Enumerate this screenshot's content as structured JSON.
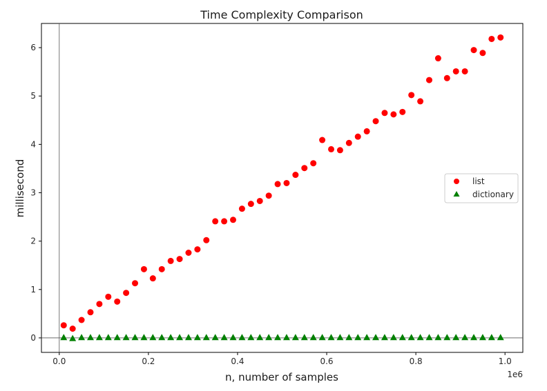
{
  "chart_data": {
    "type": "scatter",
    "title": "Time Complexity Comparison",
    "xlabel": "n, number of samples",
    "ylabel": "millisecond",
    "x_offset_label": "1e6",
    "xlim": [
      -0.04,
      1.04
    ],
    "ylim": [
      -0.3,
      6.5
    ],
    "x_ticks": [
      0.0,
      0.2,
      0.4,
      0.6,
      0.8,
      1.0
    ],
    "x_tick_labels": [
      "0.0",
      "0.2",
      "0.4",
      "0.6",
      "0.8",
      "1.0"
    ],
    "y_ticks": [
      0,
      1,
      2,
      3,
      4,
      5,
      6
    ],
    "y_tick_labels": [
      "0",
      "1",
      "2",
      "3",
      "4",
      "5",
      "6"
    ],
    "reference_lines": {
      "x": 0,
      "y": 0
    },
    "grid": false,
    "legend_position": "right",
    "x": [
      0.01,
      0.03,
      0.05,
      0.07,
      0.09,
      0.11,
      0.13,
      0.15,
      0.17,
      0.19,
      0.21,
      0.23,
      0.25,
      0.27,
      0.29,
      0.31,
      0.33,
      0.35,
      0.37,
      0.39,
      0.41,
      0.43,
      0.45,
      0.47,
      0.49,
      0.51,
      0.53,
      0.55,
      0.57,
      0.59,
      0.61,
      0.63,
      0.65,
      0.67,
      0.69,
      0.71,
      0.73,
      0.75,
      0.77,
      0.79,
      0.81,
      0.83,
      0.85,
      0.87,
      0.89,
      0.91,
      0.93,
      0.95,
      0.97,
      0.99
    ],
    "series": [
      {
        "name": "list",
        "color": "#ff0000",
        "marker": "circle",
        "values": [
          0.26,
          0.19,
          0.37,
          0.53,
          0.7,
          0.85,
          0.75,
          0.93,
          1.13,
          1.42,
          1.23,
          1.42,
          1.59,
          1.63,
          1.76,
          1.83,
          2.02,
          2.41,
          2.41,
          2.44,
          2.67,
          2.77,
          2.83,
          2.94,
          3.18,
          3.2,
          3.37,
          3.51,
          3.61,
          4.09,
          3.9,
          3.88,
          4.03,
          4.16,
          4.27,
          4.48,
          4.65,
          4.62,
          4.67,
          5.02,
          4.89,
          5.33,
          5.78,
          5.37,
          5.51,
          5.51,
          5.95,
          5.89,
          6.18,
          6.21
        ]
      },
      {
        "name": "dictionary",
        "color": "#008000",
        "marker": "triangle",
        "values": [
          0.01,
          -0.01,
          0.01,
          0.01,
          0.01,
          0.01,
          0.01,
          0.01,
          0.01,
          0.01,
          0.01,
          0.01,
          0.01,
          0.01,
          0.01,
          0.01,
          0.01,
          0.01,
          0.01,
          0.01,
          0.01,
          0.01,
          0.01,
          0.01,
          0.01,
          0.01,
          0.01,
          0.01,
          0.01,
          0.01,
          0.01,
          0.01,
          0.01,
          0.01,
          0.01,
          0.01,
          0.01,
          0.01,
          0.01,
          0.01,
          0.01,
          0.01,
          0.01,
          0.01,
          0.01,
          0.01,
          0.01,
          0.01,
          0.01,
          0.01
        ]
      }
    ]
  }
}
